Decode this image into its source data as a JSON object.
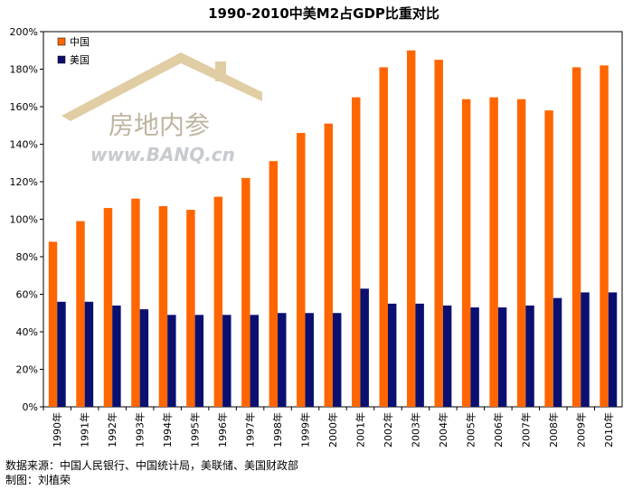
{
  "chart_data": {
    "type": "bar",
    "title": "1990-2010中美M2占GDP比重对比",
    "categories": [
      "1990年",
      "1991年",
      "1992年",
      "1993年",
      "1994年",
      "1995年",
      "1996年",
      "1997年",
      "1998年",
      "1999年",
      "2000年",
      "2001年",
      "2002年",
      "2003年",
      "2004年",
      "2005年",
      "2006年",
      "2007年",
      "2008年",
      "2009年",
      "2010年"
    ],
    "series": [
      {
        "name": "中国",
        "color": "#FF6600",
        "values": [
          88,
          99,
          106,
          111,
          107,
          105,
          112,
          122,
          131,
          146,
          151,
          165,
          181,
          190,
          185,
          164,
          165,
          164,
          158,
          181,
          182
        ]
      },
      {
        "name": "美国",
        "color": "#0A1070",
        "values": [
          56,
          56,
          54,
          52,
          49,
          49,
          49,
          49,
          50,
          50,
          50,
          63,
          55,
          55,
          54,
          53,
          53,
          54,
          58,
          61,
          61
        ]
      }
    ],
    "ylim": [
      0,
      200
    ],
    "yticks": [
      "0%",
      "20%",
      "40%",
      "60%",
      "80%",
      "100%",
      "120%",
      "140%",
      "160%",
      "180%",
      "200%"
    ],
    "grid": false,
    "legend_position": "top-left"
  },
  "watermark": {
    "text_cn": "房地内参",
    "text_url": "www.BANQ.cn"
  },
  "source_note": "数据来源：中国人民银行、中国统计局，美联储、美国财政部",
  "author_note": "制图：刘植荣"
}
